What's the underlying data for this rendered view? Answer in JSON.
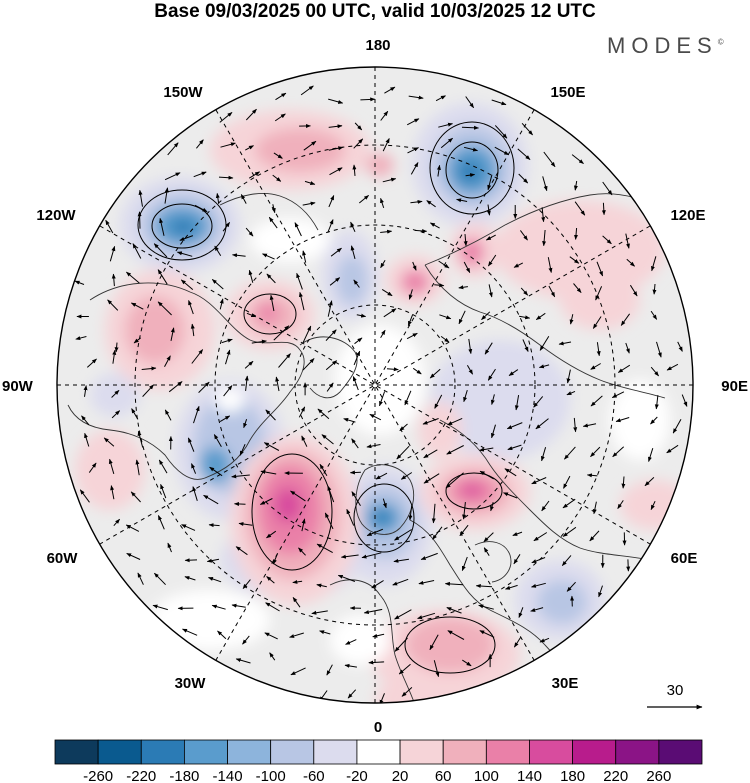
{
  "header": {
    "title": "Base 09/03/2025 00 UTC, valid 10/03/2025 12 UTC",
    "brand": "MODES"
  },
  "map": {
    "projection": "polar-stereographic-north",
    "longitude_labels": {
      "top": "180",
      "bottom": "0",
      "left": "90W",
      "right": "90E",
      "upper_left_1": "150W",
      "upper_left_2": "120W",
      "lower_left_1": "60W",
      "lower_left_2": "30W",
      "upper_right_1": "150E",
      "upper_right_2": "120E",
      "lower_right_1": "60E",
      "lower_right_2": "30E"
    },
    "vector_reference": {
      "value": "30"
    }
  },
  "colorbar": {
    "ticks": [
      "-260",
      "-220",
      "-180",
      "-140",
      "-100",
      "-60",
      "-20",
      "20",
      "60",
      "100",
      "140",
      "180",
      "220",
      "260"
    ],
    "colors": [
      "#0d3a5c",
      "#0a5a8f",
      "#2b7bb5",
      "#5a9ccd",
      "#8db4dc",
      "#b8c6e4",
      "#dcdcee",
      "#ffffff",
      "#f6d4d8",
      "#f0b0bc",
      "#ea80a8",
      "#d84c9e",
      "#b81c8c",
      "#8b1486",
      "#5a0c74"
    ]
  }
}
